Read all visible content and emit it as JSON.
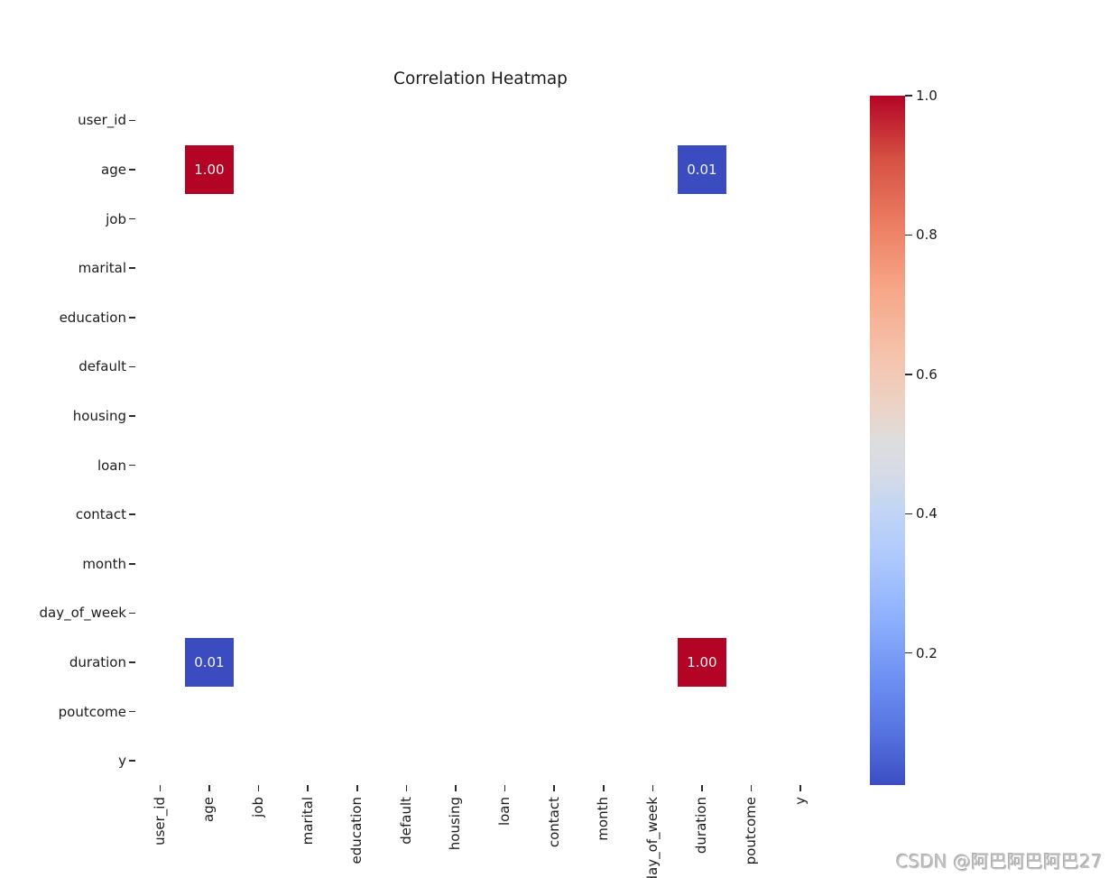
{
  "chart_data": {
    "type": "heatmap",
    "title": "Correlation Heatmap",
    "colormap": "coolwarm",
    "categories": [
      "user_id",
      "age",
      "job",
      "marital",
      "education",
      "default",
      "housing",
      "loan",
      "contact",
      "month",
      "day_of_week",
      "duration",
      "poutcome",
      "y"
    ],
    "cells": [
      {
        "row": "age",
        "col": "age",
        "value": "1.00",
        "color": "#b40426",
        "text_color": "#f2f2f2"
      },
      {
        "row": "age",
        "col": "duration",
        "value": "0.01",
        "color": "#3b4cc0",
        "text_color": "#f2f2f2"
      },
      {
        "row": "duration",
        "col": "age",
        "value": "0.01",
        "color": "#3b4cc0",
        "text_color": "#f2f2f2"
      },
      {
        "row": "duration",
        "col": "duration",
        "value": "1.00",
        "color": "#b40426",
        "text_color": "#f2f2f2"
      }
    ],
    "colorbar": {
      "position": "right",
      "vmin": 0.01,
      "vmax": 1.0,
      "ticks": [
        {
          "label": "1.0",
          "value": 1.0
        },
        {
          "label": "0.8",
          "value": 0.8
        },
        {
          "label": "0.6",
          "value": 0.6
        },
        {
          "label": "0.4",
          "value": 0.4
        },
        {
          "label": "0.2",
          "value": 0.2
        }
      ],
      "gradient": [
        {
          "pos": 0,
          "color": "#b40426"
        },
        {
          "pos": 9,
          "color": "#d55042"
        },
        {
          "pos": 19,
          "color": "#ec7f63"
        },
        {
          "pos": 28,
          "color": "#f7a687"
        },
        {
          "pos": 38,
          "color": "#f5c4ad"
        },
        {
          "pos": 45,
          "color": "#ecd3c5"
        },
        {
          "pos": 50,
          "color": "#dddddd"
        },
        {
          "pos": 55,
          "color": "#d5dbe6"
        },
        {
          "pos": 60,
          "color": "#c2d5f4"
        },
        {
          "pos": 67,
          "color": "#aec9fd"
        },
        {
          "pos": 76,
          "color": "#8db0fe"
        },
        {
          "pos": 85,
          "color": "#6c8ef1"
        },
        {
          "pos": 92,
          "color": "#5775e1"
        },
        {
          "pos": 100,
          "color": "#3c4ec2"
        }
      ]
    }
  },
  "watermark": {
    "text": "CSDN @阿巴阿巴阿巴27"
  }
}
